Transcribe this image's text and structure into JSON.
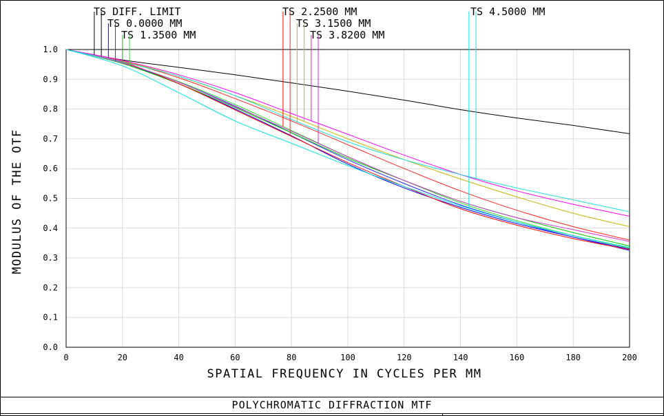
{
  "chart_data": {
    "type": "line",
    "title": "POLYCHROMATIC DIFFRACTION MTF",
    "xlabel": "SPATIAL FREQUENCY IN CYCLES PER MM",
    "ylabel": "MODULUS OF THE OTF",
    "xlim": [
      0,
      200
    ],
    "ylim": [
      0,
      1
    ],
    "x_ticks": [
      "0",
      "20",
      "40",
      "60",
      "80",
      "100",
      "120",
      "140",
      "160",
      "180",
      "200"
    ],
    "y_ticks": [
      "0.0",
      "0.1",
      "0.2",
      "0.3",
      "0.4",
      "0.5",
      "0.6",
      "0.7",
      "0.8",
      "0.9",
      "1.0"
    ],
    "grid": true,
    "legend_labels": [
      {
        "label": "TS DIFF. LIMIT",
        "marker_x": [
          10,
          12.5
        ]
      },
      {
        "label": "TS 0.0000 MM",
        "marker_x": [
          15,
          17.5
        ]
      },
      {
        "label": "TS 1.3500 MM",
        "marker_x": [
          20,
          22.5
        ]
      },
      {
        "label": "TS 2.2500 MM",
        "marker_x": [
          77,
          79.5
        ]
      },
      {
        "label": "TS 3.1500 MM",
        "marker_x": [
          82,
          84.5
        ]
      },
      {
        "label": "TS 3.8200 MM",
        "marker_x": [
          87,
          89.5
        ]
      },
      {
        "label": "TS 4.5000 MM",
        "marker_x": [
          143,
          145.5
        ]
      }
    ],
    "series": [
      {
        "color": "#000000",
        "x": [
          0,
          20,
          40,
          60,
          80,
          100,
          120,
          140,
          160,
          180,
          200
        ],
        "y": [
          1.0,
          0.965,
          0.94,
          0.915,
          0.888,
          0.86,
          0.83,
          0.798,
          0.77,
          0.745,
          0.717
        ]
      },
      {
        "color": "#0000ff",
        "x": [
          0,
          20,
          40,
          60,
          80,
          100,
          120,
          140,
          160,
          180,
          200
        ],
        "y": [
          1.0,
          0.955,
          0.885,
          0.8,
          0.71,
          0.615,
          0.535,
          0.47,
          0.415,
          0.37,
          0.33
        ]
      },
      {
        "color": "#2a2aff",
        "x": [
          0,
          20,
          40,
          60,
          80,
          100,
          120,
          140,
          160,
          180,
          200
        ],
        "y": [
          1.0,
          0.955,
          0.89,
          0.81,
          0.72,
          0.63,
          0.55,
          0.478,
          0.42,
          0.37,
          0.325
        ]
      },
      {
        "color": "#00cc00",
        "x": [
          0,
          20,
          40,
          60,
          80,
          100,
          120,
          140,
          160,
          180,
          200
        ],
        "y": [
          1.0,
          0.953,
          0.885,
          0.805,
          0.72,
          0.635,
          0.56,
          0.49,
          0.435,
          0.385,
          0.34
        ]
      },
      {
        "color": "#33dd33",
        "x": [
          0,
          20,
          40,
          60,
          80,
          100,
          120,
          140,
          160,
          180,
          200
        ],
        "y": [
          1.0,
          0.955,
          0.892,
          0.815,
          0.728,
          0.64,
          0.56,
          0.485,
          0.425,
          0.375,
          0.333
        ]
      },
      {
        "color": "#ff0000",
        "x": [
          0,
          20,
          40,
          60,
          80,
          100,
          120,
          140,
          160,
          180,
          200
        ],
        "y": [
          1.0,
          0.958,
          0.885,
          0.797,
          0.708,
          0.62,
          0.54,
          0.465,
          0.41,
          0.365,
          0.328
        ]
      },
      {
        "color": "#ff2222",
        "x": [
          0,
          20,
          40,
          60,
          80,
          100,
          120,
          140,
          160,
          180,
          200
        ],
        "y": [
          1.0,
          0.96,
          0.905,
          0.835,
          0.76,
          0.68,
          0.6,
          0.525,
          0.46,
          0.405,
          0.36
        ]
      },
      {
        "color": "#c8b400",
        "x": [
          0,
          20,
          40,
          60,
          80,
          100,
          120,
          140,
          160,
          180,
          200
        ],
        "y": [
          1.0,
          0.962,
          0.91,
          0.845,
          0.775,
          0.7,
          0.63,
          0.565,
          0.505,
          0.45,
          0.405
        ]
      },
      {
        "color": "#ff00ff",
        "x": [
          0,
          20,
          40,
          60,
          80,
          100,
          120,
          140,
          160,
          180,
          200
        ],
        "y": [
          1.0,
          0.963,
          0.915,
          0.855,
          0.785,
          0.715,
          0.645,
          0.58,
          0.525,
          0.48,
          0.44
        ]
      },
      {
        "color": "#cc33cc",
        "x": [
          0,
          20,
          40,
          60,
          80,
          100,
          120,
          140,
          160,
          180,
          200
        ],
        "y": [
          1.0,
          0.955,
          0.89,
          0.808,
          0.725,
          0.64,
          0.56,
          0.49,
          0.435,
          0.395,
          0.355
        ]
      },
      {
        "color": "#00e5e5",
        "x": [
          0,
          20,
          40,
          60,
          80,
          100,
          120,
          140,
          160,
          180,
          200
        ],
        "y": [
          1.0,
          0.945,
          0.855,
          0.76,
          0.685,
          0.61,
          0.54,
          0.475,
          0.42,
          0.375,
          0.335
        ]
      },
      {
        "color": "#22dddd",
        "x": [
          0,
          20,
          40,
          60,
          80,
          100,
          120,
          140,
          160,
          180,
          200
        ],
        "y": [
          1.0,
          0.958,
          0.91,
          0.845,
          0.765,
          0.69,
          0.63,
          0.58,
          0.535,
          0.495,
          0.455
        ]
      }
    ],
    "legend_marker_colors": [
      "#000000",
      "#000000",
      "#0000ff",
      "#2a2aff",
      "#00cc00",
      "#33dd33",
      "#ff0000",
      "#ff2222",
      "#c8b400",
      "#c8b400",
      "#ff00ff",
      "#cc33cc",
      "#00e5e5",
      "#22dddd"
    ]
  }
}
